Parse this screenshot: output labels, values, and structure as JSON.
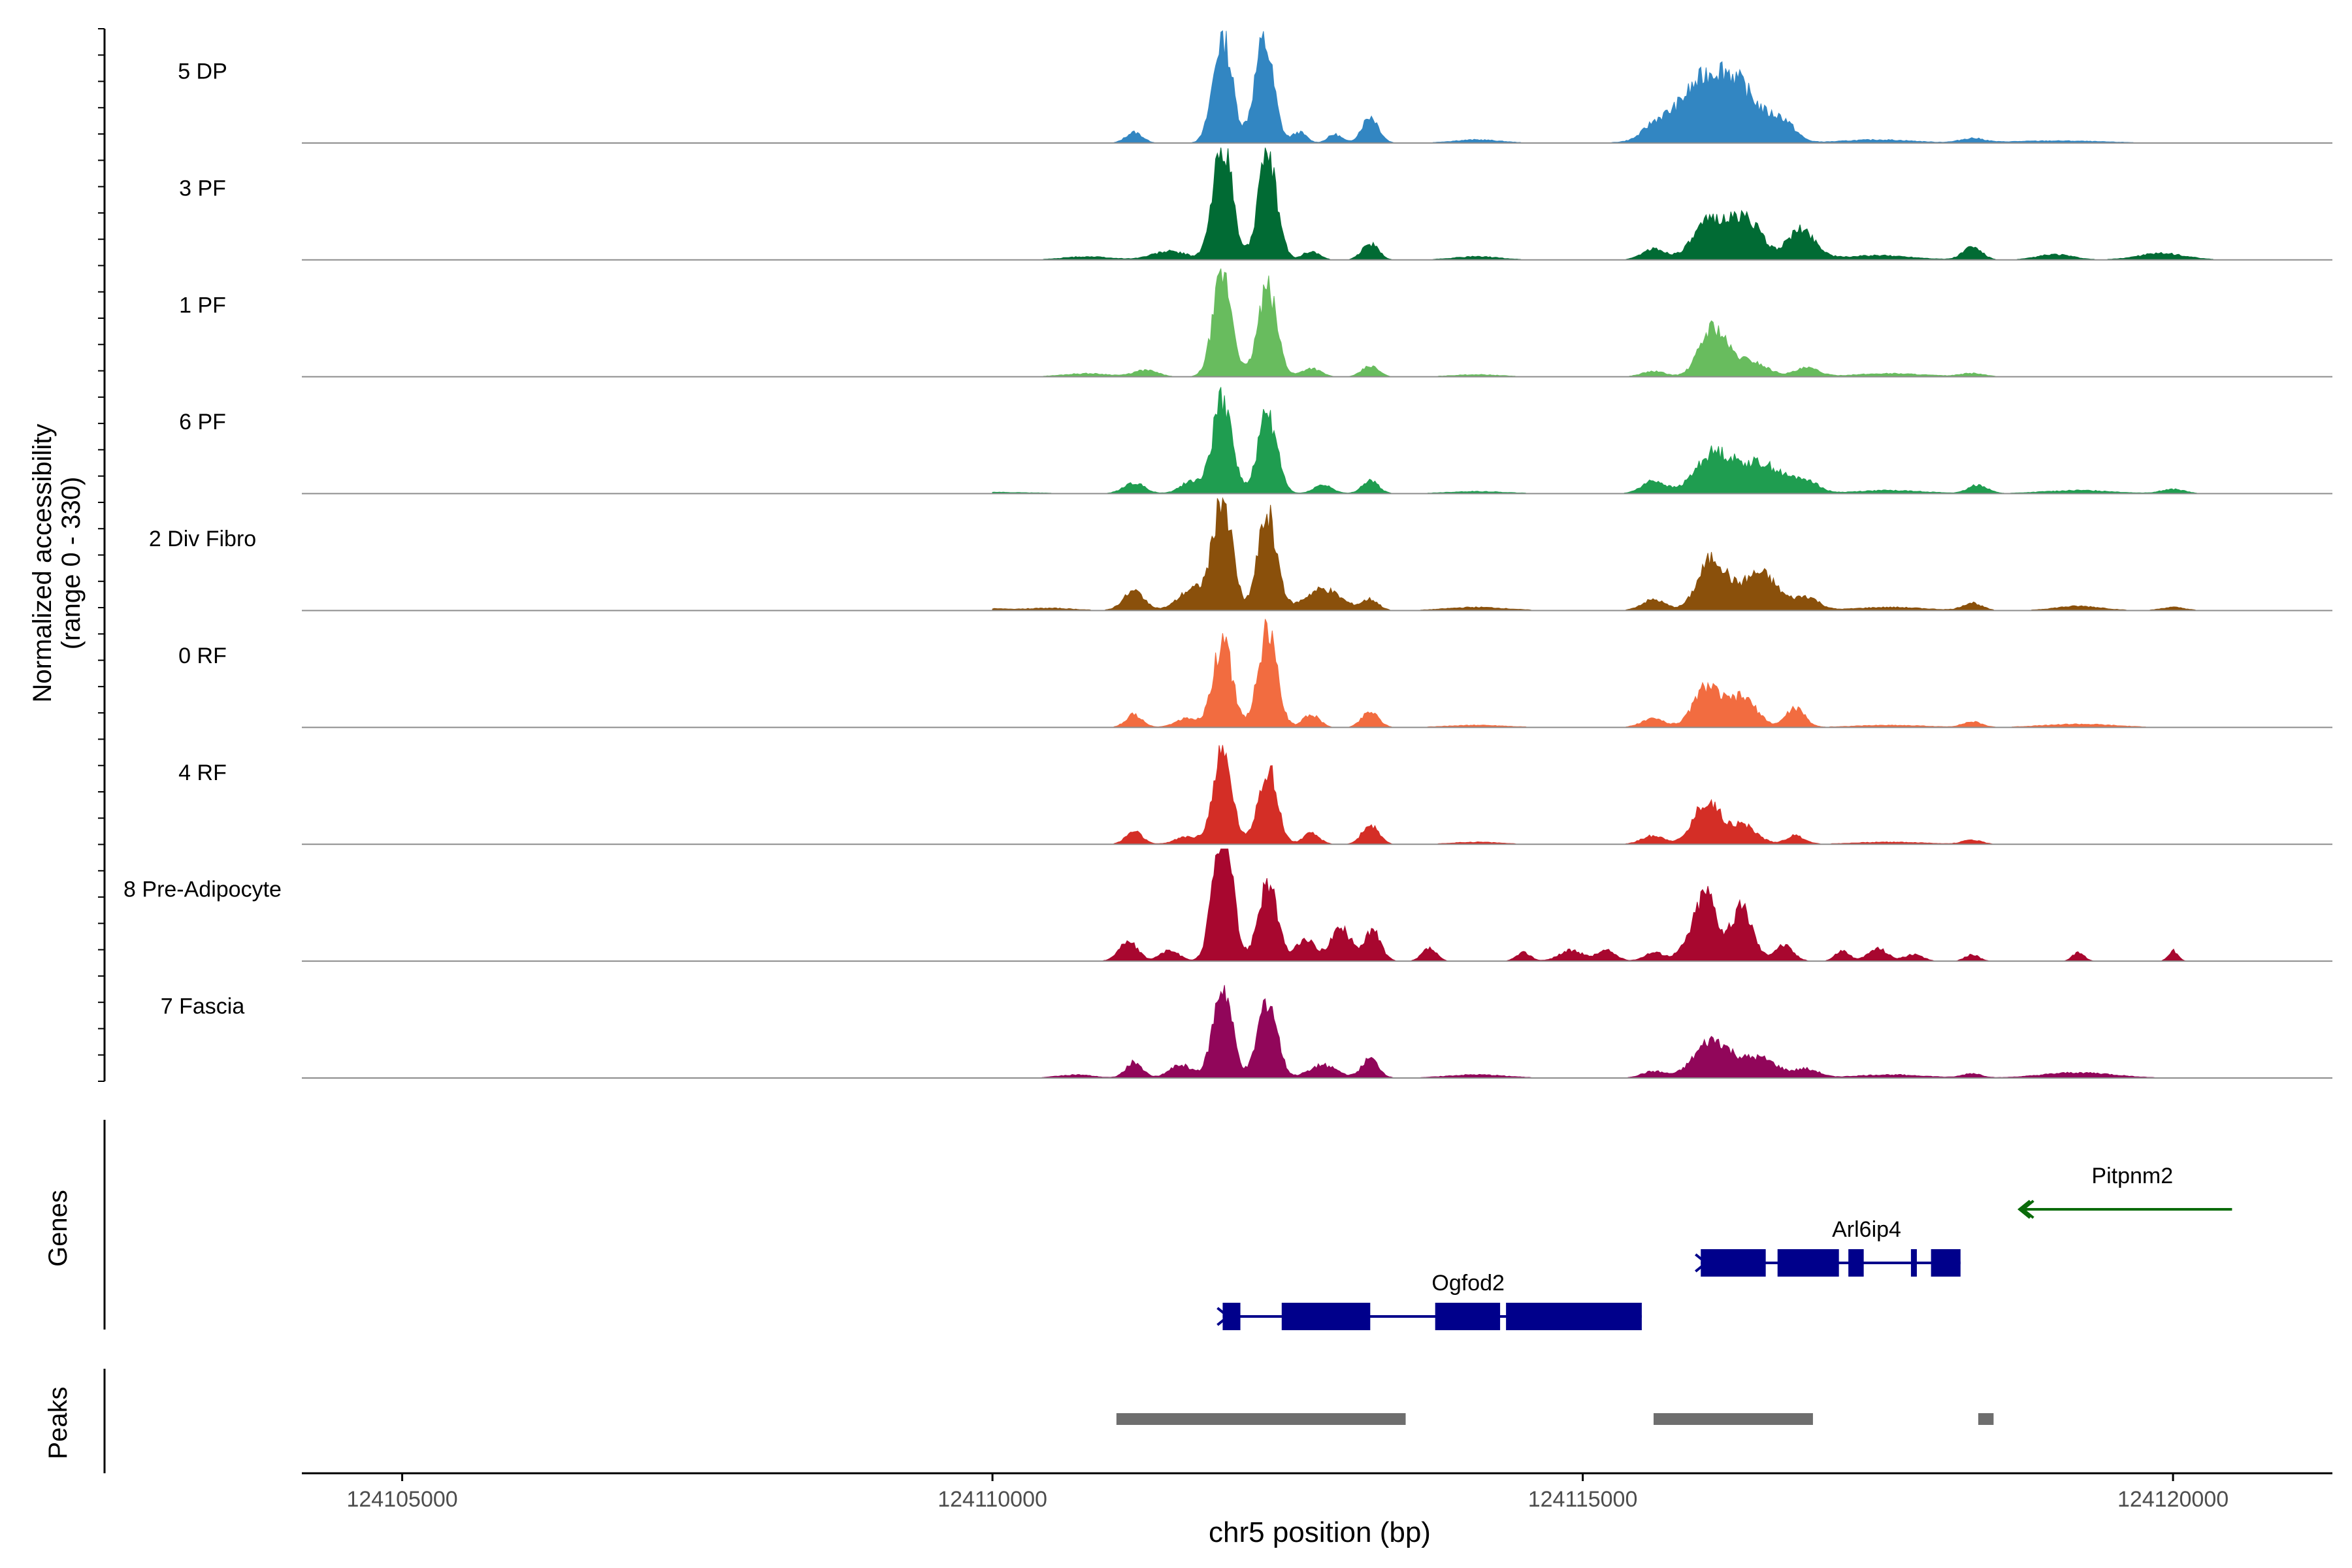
{
  "chart_data": {
    "type": "area",
    "title": "",
    "xlabel": "chr5 position (bp)",
    "ylabel": "Normalized accessibility",
    "ylabel_sub": "(range 0 - 330)",
    "xlim": [
      124104150,
      124121350
    ],
    "ylim": [
      0,
      330
    ],
    "x_ticks": [
      124105000,
      124110000,
      124115000,
      124120000
    ],
    "x_tick_labels": [
      "124105000",
      "124110000",
      "124115000",
      "124120000"
    ],
    "track_span": [
      124110000,
      124120500
    ],
    "tracks": [
      {
        "name": "5 DP",
        "color": "#3286C2",
        "peaks": [
          [
            124111200,
            10,
            70
          ],
          [
            124111950,
            100,
            80
          ],
          [
            124112300,
            95,
            80
          ],
          [
            124112600,
            10,
            60
          ],
          [
            124112900,
            8,
            60
          ],
          [
            124113200,
            25,
            70
          ],
          [
            124114100,
            3,
            200
          ],
          [
            124115600,
            8,
            90
          ],
          [
            124116000,
            45,
            250
          ],
          [
            124116300,
            40,
            220
          ],
          [
            124116700,
            15,
            100
          ],
          [
            124117500,
            3,
            300
          ],
          [
            124118300,
            4,
            100
          ],
          [
            124119000,
            2,
            400
          ]
        ]
      },
      {
        "name": "3 PF",
        "color": "#016B34",
        "peaks": [
          [
            124110800,
            3,
            200
          ],
          [
            124111500,
            8,
            150
          ],
          [
            124111950,
            110,
            80
          ],
          [
            124112330,
            95,
            80
          ],
          [
            124112700,
            8,
            70
          ],
          [
            124113200,
            15,
            70
          ],
          [
            124114100,
            3,
            200
          ],
          [
            124115600,
            10,
            100
          ],
          [
            124116100,
            38,
            150
          ],
          [
            124116400,
            35,
            120
          ],
          [
            124116850,
            28,
            120
          ],
          [
            124117500,
            4,
            300
          ],
          [
            124118300,
            12,
            80
          ],
          [
            124119000,
            5,
            150
          ],
          [
            124119900,
            6,
            200
          ]
        ]
      },
      {
        "name": "1 PF",
        "color": "#68BC5E",
        "peaks": [
          [
            124110800,
            3,
            200
          ],
          [
            124111300,
            6,
            100
          ],
          [
            124111950,
            95,
            80
          ],
          [
            124112330,
            82,
            80
          ],
          [
            124112700,
            8,
            80
          ],
          [
            124113200,
            10,
            70
          ],
          [
            124114100,
            2,
            200
          ],
          [
            124115600,
            5,
            100
          ],
          [
            124116100,
            45,
            110
          ],
          [
            124116400,
            15,
            150
          ],
          [
            124116900,
            8,
            100
          ],
          [
            124117600,
            3,
            300
          ],
          [
            124118300,
            3,
            100
          ]
        ]
      },
      {
        "name": "6 PF",
        "color": "#1F9D50",
        "peaks": [
          [
            124109500,
            2,
            600
          ],
          [
            124111200,
            10,
            90
          ],
          [
            124111700,
            12,
            100
          ],
          [
            124111950,
            90,
            80
          ],
          [
            124112330,
            75,
            80
          ],
          [
            124112800,
            8,
            80
          ],
          [
            124113200,
            12,
            70
          ],
          [
            124114100,
            2,
            250
          ],
          [
            124115600,
            12,
            100
          ],
          [
            124116100,
            35,
            150
          ],
          [
            124116500,
            28,
            200
          ],
          [
            124116900,
            10,
            100
          ],
          [
            124117600,
            3,
            300
          ],
          [
            124118350,
            8,
            80
          ],
          [
            124119200,
            3,
            300
          ],
          [
            124120000,
            4,
            100
          ]
        ]
      },
      {
        "name": "2 Div Fibro",
        "color": "#8A500B",
        "peaks": [
          [
            124109800,
            2,
            300
          ],
          [
            124110500,
            2,
            200
          ],
          [
            124111200,
            18,
            90
          ],
          [
            124111700,
            20,
            120
          ],
          [
            124111950,
            105,
            80
          ],
          [
            124112330,
            90,
            80
          ],
          [
            124112800,
            20,
            150
          ],
          [
            124113200,
            10,
            70
          ],
          [
            124114100,
            3,
            250
          ],
          [
            124115600,
            10,
            100
          ],
          [
            124116100,
            48,
            120
          ],
          [
            124116500,
            35,
            150
          ],
          [
            124116900,
            12,
            100
          ],
          [
            124117600,
            3,
            300
          ],
          [
            124118300,
            7,
            80
          ],
          [
            124119200,
            4,
            200
          ],
          [
            124120000,
            3,
            100
          ]
        ]
      },
      {
        "name": "0 RF",
        "color": "#F26C40",
        "peaks": [
          [
            124111200,
            12,
            70
          ],
          [
            124111650,
            8,
            100
          ],
          [
            124111950,
            80,
            80
          ],
          [
            124112330,
            90,
            80
          ],
          [
            124112700,
            12,
            70
          ],
          [
            124113200,
            15,
            70
          ],
          [
            124114100,
            2,
            250
          ],
          [
            124115600,
            8,
            100
          ],
          [
            124116050,
            38,
            110
          ],
          [
            124116350,
            28,
            120
          ],
          [
            124116800,
            18,
            80
          ],
          [
            124117600,
            2,
            300
          ],
          [
            124118300,
            5,
            80
          ],
          [
            124119200,
            3,
            300
          ]
        ]
      },
      {
        "name": "4 RF",
        "color": "#D42E26",
        "peaks": [
          [
            124111200,
            12,
            70
          ],
          [
            124111650,
            7,
            100
          ],
          [
            124111950,
            85,
            80
          ],
          [
            124112330,
            72,
            80
          ],
          [
            124112700,
            10,
            70
          ],
          [
            124113200,
            18,
            70
          ],
          [
            124114100,
            2,
            200
          ],
          [
            124115600,
            8,
            100
          ],
          [
            124116050,
            40,
            110
          ],
          [
            124116350,
            18,
            120
          ],
          [
            124116800,
            8,
            80
          ],
          [
            124117600,
            2,
            300
          ],
          [
            124118300,
            4,
            80
          ]
        ]
      },
      {
        "name": "8 Pre-Adipocyte",
        "color": "#A8072F",
        "peaks": [
          [
            124111150,
            18,
            80
          ],
          [
            124111500,
            10,
            80
          ],
          [
            124111950,
            130,
            80
          ],
          [
            124112330,
            75,
            80
          ],
          [
            124112650,
            20,
            80
          ],
          [
            124112950,
            30,
            90
          ],
          [
            124113220,
            28,
            70
          ],
          [
            124113700,
            12,
            60
          ],
          [
            124114500,
            8,
            60
          ],
          [
            124114900,
            10,
            100
          ],
          [
            124115200,
            10,
            80
          ],
          [
            124115600,
            8,
            80
          ],
          [
            124115900,
            12,
            100
          ],
          [
            124116050,
            62,
            90
          ],
          [
            124116350,
            50,
            90
          ],
          [
            124116700,
            15,
            80
          ],
          [
            124117200,
            10,
            60
          ],
          [
            124117500,
            12,
            80
          ],
          [
            124117800,
            6,
            80
          ],
          [
            124118300,
            6,
            60
          ],
          [
            124119200,
            8,
            50
          ],
          [
            124120000,
            10,
            40
          ]
        ]
      },
      {
        "name": "7 Fascia",
        "color": "#91065A",
        "peaks": [
          [
            124110700,
            3,
            150
          ],
          [
            124111200,
            15,
            70
          ],
          [
            124111600,
            12,
            100
          ],
          [
            124111950,
            85,
            80
          ],
          [
            124112330,
            75,
            80
          ],
          [
            124112800,
            12,
            120
          ],
          [
            124113200,
            18,
            70
          ],
          [
            124114100,
            3,
            250
          ],
          [
            124115600,
            6,
            100
          ],
          [
            124116100,
            35,
            150
          ],
          [
            124116500,
            18,
            150
          ],
          [
            124116900,
            8,
            100
          ],
          [
            124117600,
            3,
            300
          ],
          [
            124118300,
            4,
            80
          ],
          [
            124119200,
            5,
            300
          ]
        ]
      }
    ],
    "genes_label": "Genes",
    "genes": [
      {
        "name": "Pitpnm2",
        "color": "#0A6B0A",
        "strand": "-",
        "start": 124118700,
        "end": 124120500,
        "row": 0,
        "exons": []
      },
      {
        "name": "Arl6ip4",
        "color": "#00008B",
        "strand": "+",
        "start": 124116000,
        "end": 124118200,
        "row": 1,
        "exons": [
          [
            124116000,
            124116550
          ],
          [
            124116650,
            124117170
          ],
          [
            124117250,
            124117380
          ],
          [
            124117780,
            124117830
          ],
          [
            124117950,
            124118200
          ]
        ]
      },
      {
        "name": "Ogfod2",
        "color": "#00008B",
        "strand": "+",
        "start": 124111950,
        "end": 124115500,
        "row": 2,
        "exons": [
          [
            124111950,
            124112100
          ],
          [
            124112450,
            124113200
          ],
          [
            124113750,
            124114300
          ],
          [
            124114350,
            124115500
          ]
        ]
      }
    ],
    "peaks_label": "Peaks",
    "peak_regions": [
      [
        124111050,
        124113500
      ],
      [
        124115600,
        124116950
      ],
      [
        124118350,
        124118480
      ]
    ]
  }
}
